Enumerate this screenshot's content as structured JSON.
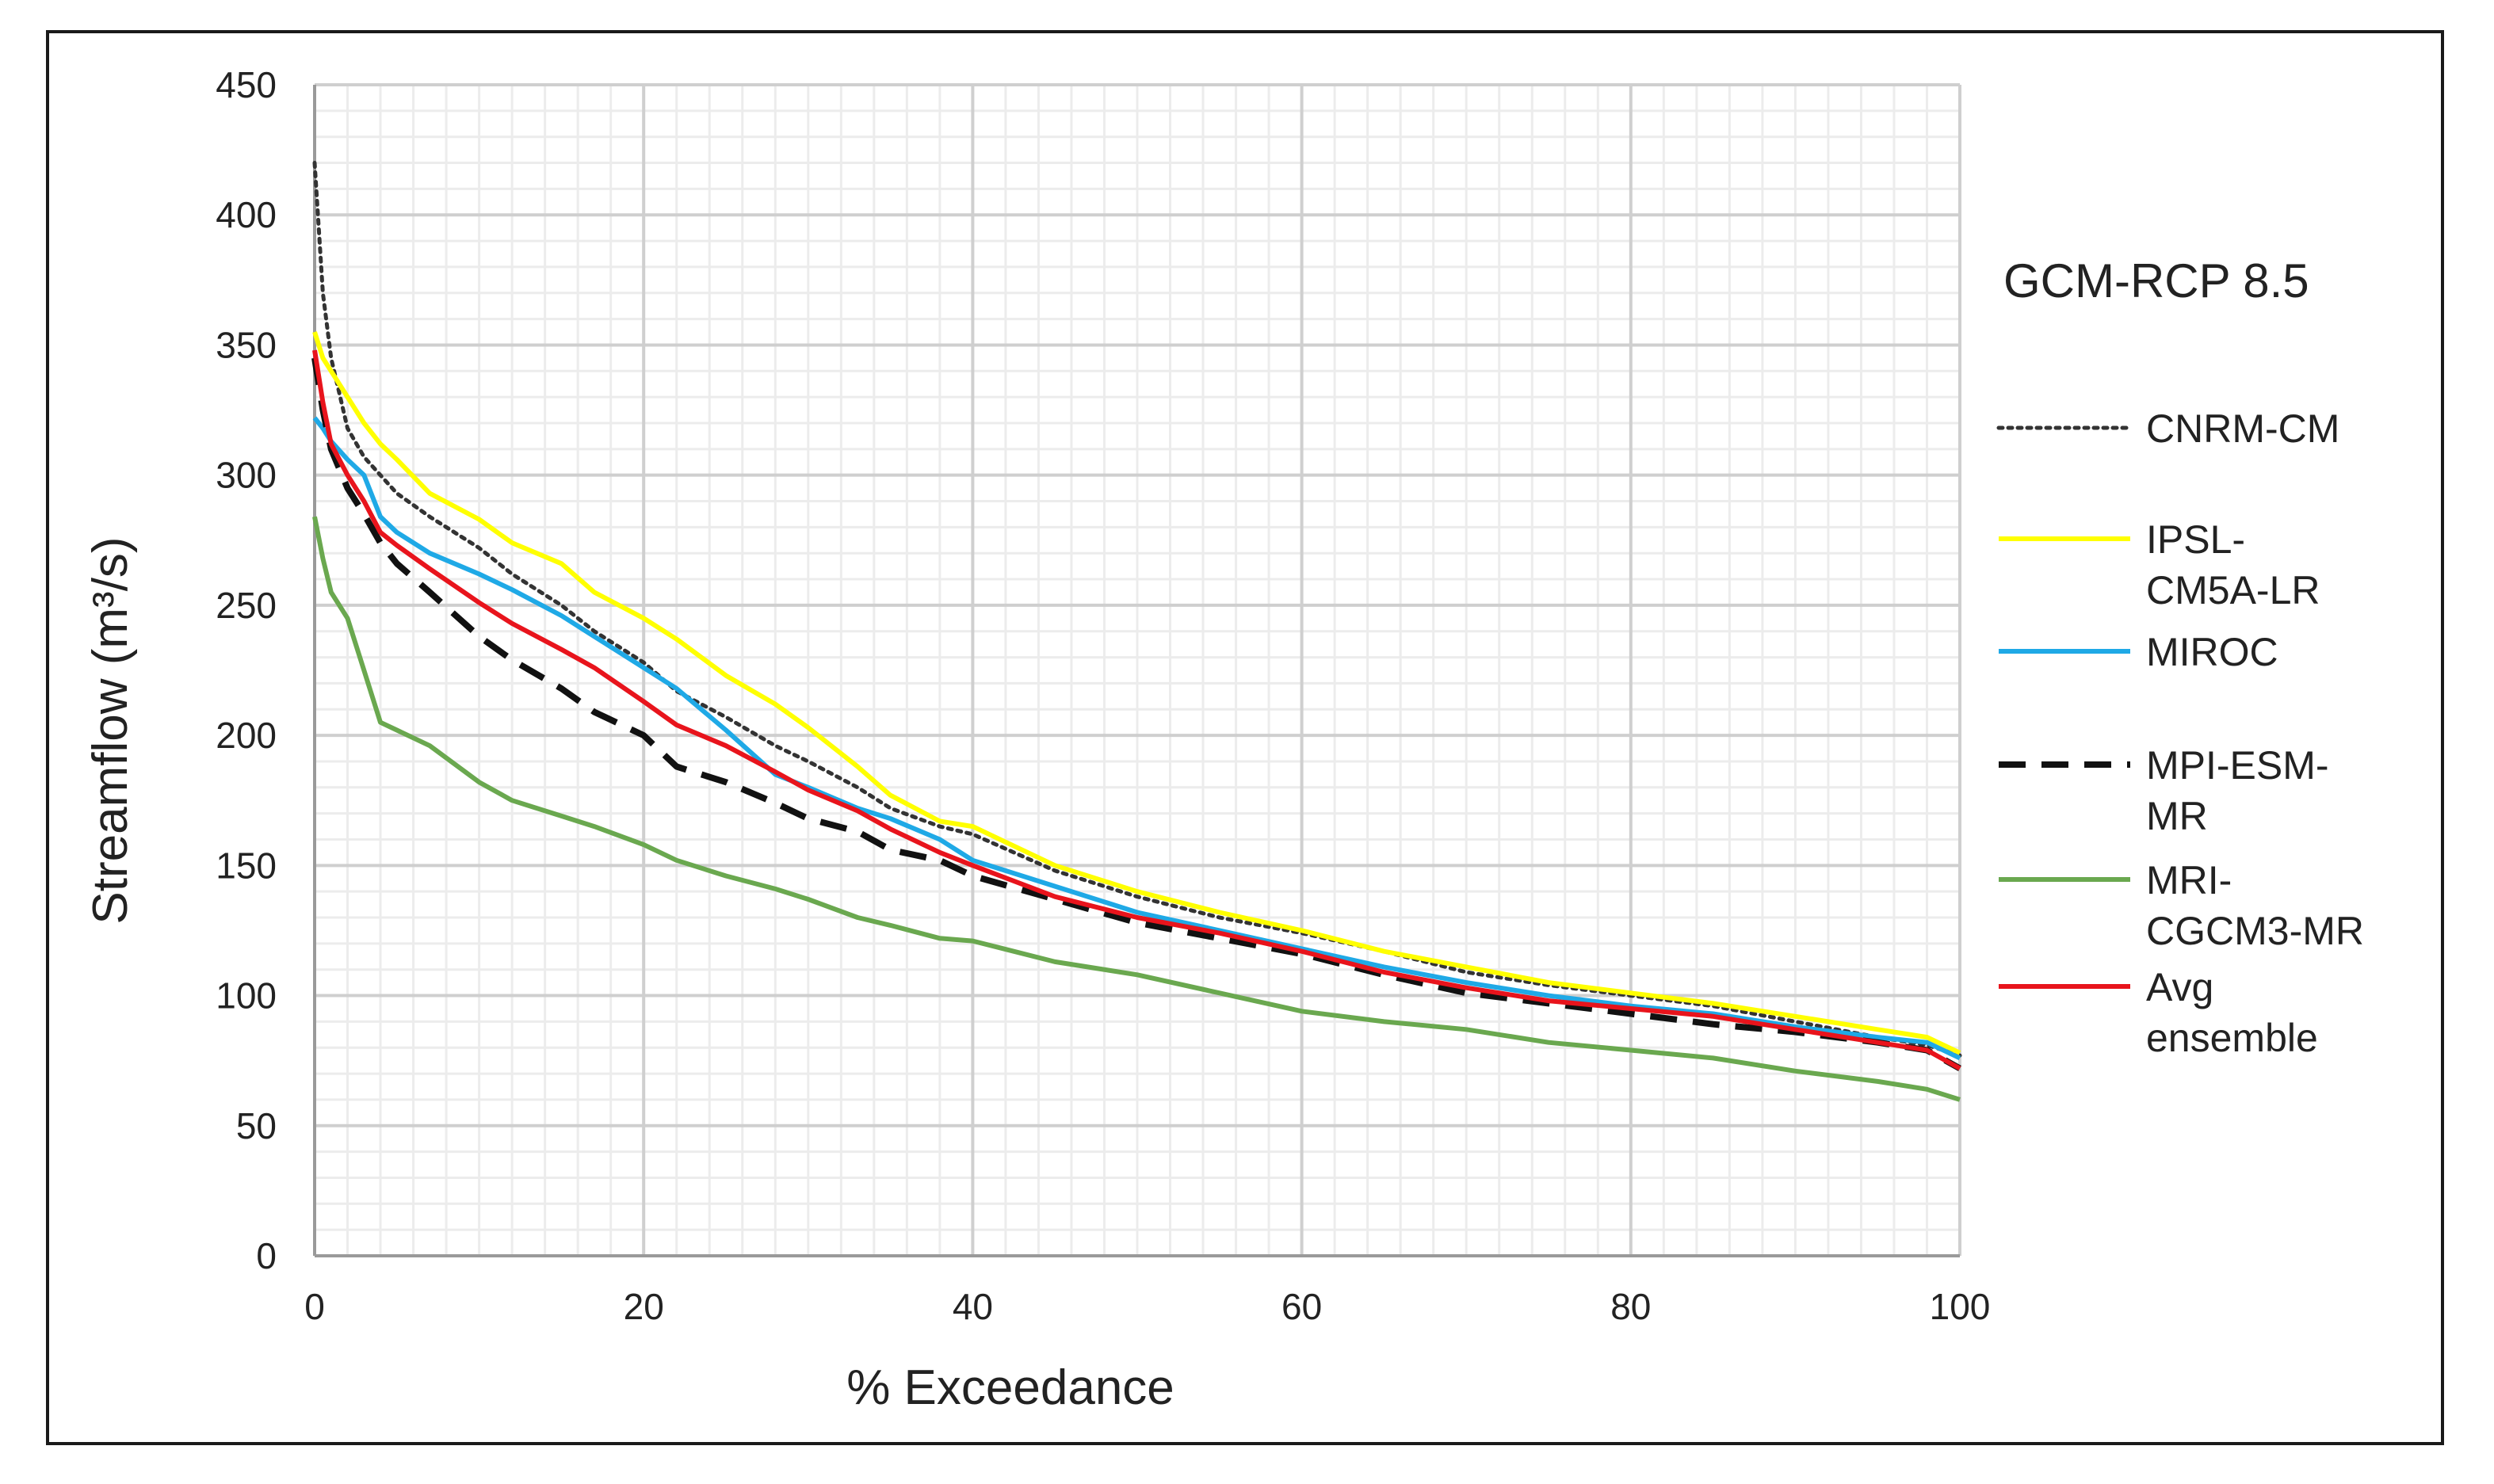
{
  "chart_data": {
    "type": "line",
    "title": "GCM-RCP 8.5",
    "xlabel": "% Exceedance",
    "ylabel": "Streamflow (m³/s)",
    "xlim": [
      0,
      100
    ],
    "ylim": [
      0,
      450
    ],
    "xticks": [
      "0",
      "20",
      "40",
      "60",
      "80",
      "100"
    ],
    "yticks": [
      "0",
      "50",
      "100",
      "150",
      "200",
      "250",
      "300",
      "350",
      "400",
      "450"
    ],
    "grid": {
      "major": true,
      "minor": true
    },
    "legend_position": "right",
    "x": [
      0,
      0.5,
      1,
      2,
      3,
      4,
      5,
      7,
      10,
      12,
      15,
      17,
      20,
      22,
      25,
      28,
      30,
      33,
      35,
      38,
      40,
      45,
      50,
      55,
      60,
      65,
      70,
      75,
      80,
      85,
      90,
      95,
      98,
      100
    ],
    "series": [
      {
        "name": "CNRM-CM",
        "label_lines": [
          "CNRM-CM"
        ],
        "color": "#333333",
        "dash": "dotted",
        "values": [
          420,
          370,
          345,
          318,
          307,
          300,
          293,
          284,
          272,
          262,
          250,
          240,
          228,
          217,
          207,
          196,
          190,
          180,
          172,
          165,
          162,
          148,
          138,
          130,
          124,
          117,
          109,
          104,
          100,
          96,
          90,
          84,
          81,
          77
        ]
      },
      {
        "name": "IPSL-CM5A-LR",
        "label_lines": [
          "IPSL-",
          "CM5A-LR"
        ],
        "color": "#ffff00",
        "dash": "solid",
        "values": [
          355,
          345,
          340,
          330,
          320,
          312,
          306,
          293,
          283,
          274,
          266,
          255,
          245,
          237,
          223,
          212,
          203,
          188,
          177,
          167,
          165,
          150,
          140,
          132,
          125,
          117,
          111,
          105,
          101,
          97,
          92,
          87,
          84,
          78
        ]
      },
      {
        "name": "MIROC",
        "label_lines": [
          "MIROC"
        ],
        "color": "#1fa9e6",
        "dash": "solid",
        "values": [
          322,
          318,
          313,
          306,
          300,
          284,
          278,
          270,
          262,
          256,
          246,
          238,
          226,
          218,
          202,
          185,
          180,
          172,
          168,
          160,
          152,
          142,
          132,
          125,
          118,
          111,
          105,
          100,
          96,
          93,
          88,
          84,
          82,
          76
        ]
      },
      {
        "name": "MPI-ESM-MR",
        "label_lines": [
          "MPI-ESM-",
          "MR"
        ],
        "color": "#111111",
        "dash": "dashed",
        "values": [
          345,
          325,
          310,
          295,
          285,
          274,
          266,
          255,
          238,
          229,
          218,
          209,
          200,
          188,
          182,
          174,
          168,
          163,
          156,
          152,
          146,
          137,
          128,
          122,
          116,
          108,
          101,
          97,
          93,
          89,
          86,
          82,
          79,
          72
        ]
      },
      {
        "name": "MRI-CGCM3-MR",
        "label_lines": [
          "MRI-",
          "CGCM3-MR"
        ],
        "color": "#6aa84f",
        "dash": "solid",
        "values": [
          284,
          268,
          255,
          245,
          225,
          205,
          202,
          196,
          182,
          175,
          169,
          165,
          158,
          152,
          146,
          141,
          137,
          130,
          127,
          122,
          121,
          113,
          108,
          101,
          94,
          90,
          87,
          82,
          79,
          76,
          71,
          67,
          64,
          60
        ]
      },
      {
        "name": "Avg ensemble",
        "label_lines": [
          "Avg",
          "ensemble"
        ],
        "color": "#e8141c",
        "dash": "solid",
        "values": [
          348,
          328,
          312,
          300,
          290,
          278,
          273,
          264,
          251,
          243,
          233,
          226,
          213,
          204,
          196,
          186,
          179,
          171,
          164,
          155,
          150,
          138,
          130,
          124,
          117,
          109,
          103,
          98,
          95,
          92,
          87,
          82,
          79,
          72
        ]
      }
    ]
  }
}
